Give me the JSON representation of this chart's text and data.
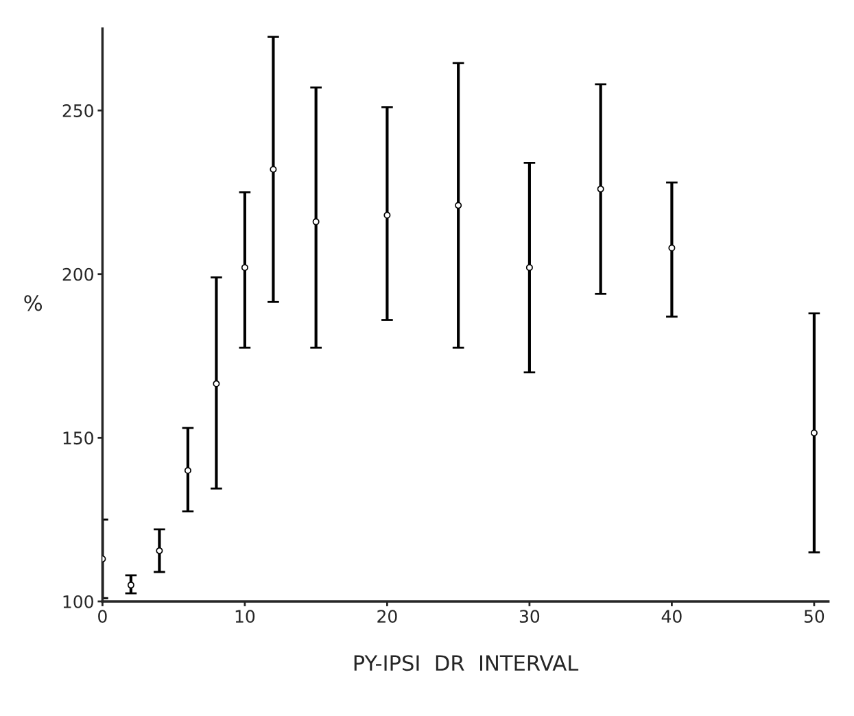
{
  "chart_data": {
    "type": "scatter",
    "xlabel": "PY-IPSI  DR  INTERVAL",
    "ylabel": "%",
    "x": [
      0,
      2,
      4,
      6,
      8,
      10,
      12,
      15,
      20,
      25,
      30,
      35,
      40,
      50
    ],
    "series": [
      {
        "color": "#000000",
        "values": [
          113,
          105,
          115.5,
          140,
          166.5,
          202,
          232,
          216,
          218,
          221,
          202,
          226,
          208,
          151.5
        ],
        "errors": [
          [
            101,
            125
          ],
          [
            102.5,
            108
          ],
          [
            109,
            122
          ],
          [
            127.5,
            153
          ],
          [
            134.5,
            199
          ],
          [
            177.5,
            225
          ],
          [
            191.5,
            272.5
          ],
          [
            177.5,
            257
          ],
          [
            186,
            251
          ],
          [
            177.5,
            264.5
          ],
          [
            170,
            234
          ],
          [
            194,
            258
          ],
          [
            187,
            228
          ],
          [
            115,
            188
          ]
        ]
      }
    ],
    "xlim": [
      0,
      51
    ],
    "ylim": [
      100,
      275
    ],
    "xticks": [
      0,
      10,
      20,
      30,
      40,
      50
    ],
    "yticks": [
      100,
      150,
      200,
      250
    ],
    "marker": "circle",
    "grid": false,
    "legend": false
  }
}
